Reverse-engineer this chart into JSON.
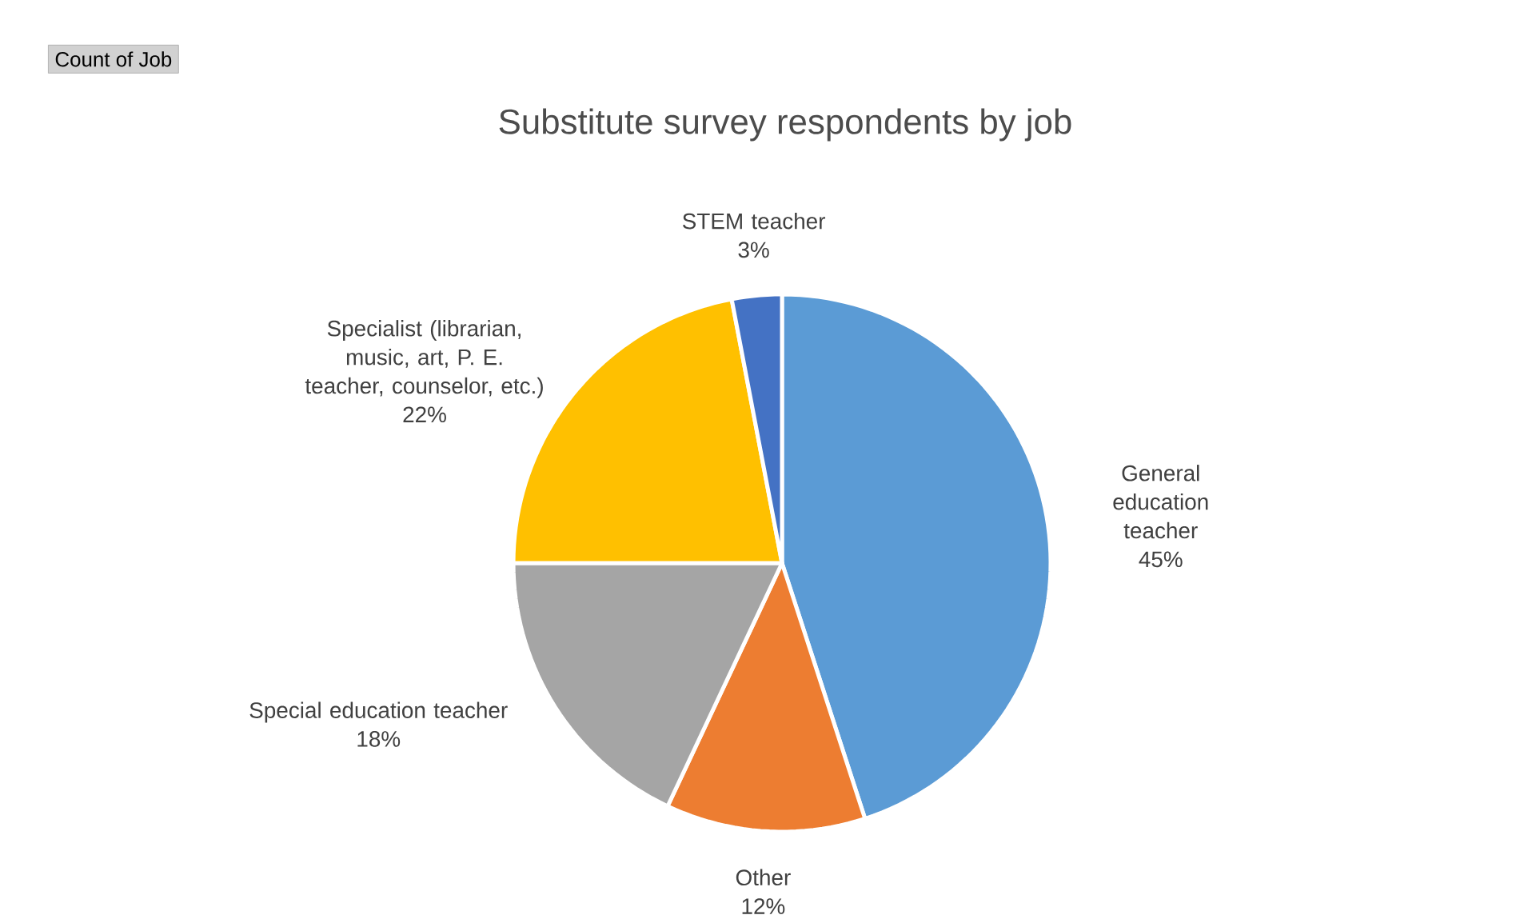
{
  "chart_data": {
    "type": "pie",
    "title": "Substitute survey respondents by job",
    "categories": [
      "General education teacher",
      "Other",
      "Special education teacher",
      "Specialist (librarian, music, art, P. E. teacher, counselor, etc.)",
      "STEM teacher"
    ],
    "values": [
      45,
      12,
      18,
      22,
      3
    ],
    "value_labels": [
      "45%",
      "12%",
      "18%",
      "22%",
      "3%"
    ],
    "colors": [
      "#5b9bd5",
      "#ed7d31",
      "#a5a5a5",
      "#ffc000",
      "#4472c4"
    ],
    "annotations": [
      "Count of Job"
    ]
  }
}
